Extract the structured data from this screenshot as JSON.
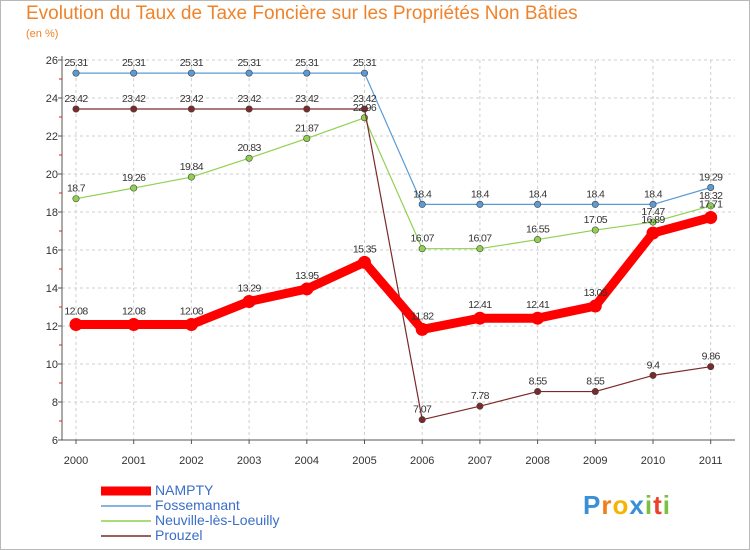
{
  "chart_data": {
    "type": "line",
    "title": "Evolution du Taux de Taxe Foncière sur les Propriétés Non Bâties",
    "ylabel": "(en %)",
    "xlabel": "",
    "categories": [
      "2000",
      "2001",
      "2002",
      "2003",
      "2004",
      "2005",
      "2006",
      "2007",
      "2008",
      "2009",
      "2010",
      "2011"
    ],
    "ylim": [
      6,
      26
    ],
    "yticks": [
      6,
      8,
      10,
      12,
      14,
      16,
      18,
      20,
      22,
      24,
      26
    ],
    "series": [
      {
        "name": "NAMPTY",
        "color": "#ff0000",
        "values": [
          12.08,
          12.08,
          12.08,
          13.29,
          13.95,
          15.35,
          11.82,
          12.41,
          12.41,
          13.05,
          16.89,
          17.71
        ],
        "labels": [
          "12.08",
          "12.08",
          "12.08",
          "13.29",
          "13.95",
          "15.35",
          "11.82",
          "12.41",
          "12.41",
          "13.05",
          "16.89",
          "17.71"
        ]
      },
      {
        "name": "Fossemanant",
        "color": "#5b9bd5",
        "values": [
          25.31,
          25.31,
          25.31,
          25.31,
          25.31,
          25.31,
          18.4,
          18.4,
          18.4,
          18.4,
          18.4,
          19.29
        ],
        "labels": [
          "25.31",
          "25.31",
          "25.31",
          "25.31",
          "25.31",
          "25.31",
          "18.4",
          "18.4",
          "18.4",
          "18.4",
          "18.4",
          "19.29"
        ]
      },
      {
        "name": "Neuville-lès-Loeuilly",
        "color": "#8fd14f",
        "values": [
          18.7,
          19.26,
          19.84,
          20.83,
          21.87,
          22.96,
          16.07,
          16.07,
          16.55,
          17.05,
          17.47,
          18.32
        ],
        "labels": [
          "18.7",
          "19.26",
          "19.84",
          "20.83",
          "21.87",
          "22.96",
          "16.07",
          "16.07",
          "16.55",
          "17.05",
          "17.47",
          "18.32"
        ]
      },
      {
        "name": "Prouzel",
        "color": "#7b2a2a",
        "values": [
          23.42,
          23.42,
          23.42,
          23.42,
          23.42,
          23.42,
          7.07,
          7.78,
          8.55,
          8.55,
          9.4,
          9.86
        ],
        "labels": [
          "23.42",
          "23.42",
          "23.42",
          "23.42",
          "23.42",
          "23.42",
          "7.07",
          "7.78",
          "8.55",
          "8.55",
          "9.4",
          "9.86"
        ]
      }
    ],
    "legend_position": "bottom-left"
  },
  "logo": {
    "text": "Proxiti"
  }
}
